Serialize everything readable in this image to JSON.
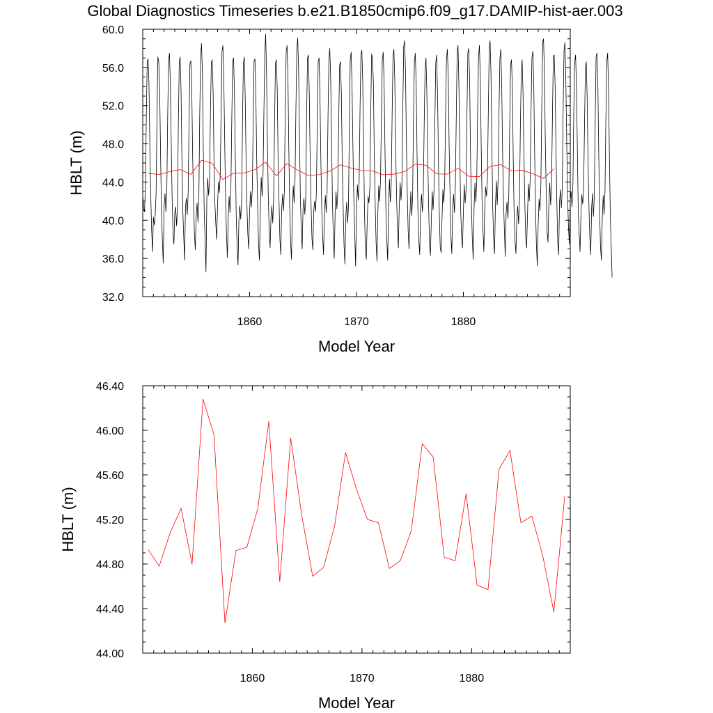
{
  "title": "Global Diagnostics Timeseries b.e21.B1850cmip6.f09_g17.DAMIP-hist-aer.003",
  "chart_data": [
    {
      "type": "line",
      "xlabel": "Model Year",
      "ylabel": "HBLT (m)",
      "xlim": [
        1850,
        1890
      ],
      "ylim": [
        32.0,
        60.0
      ],
      "x_ticks": [
        "1860",
        "1870",
        "1880"
      ],
      "y_ticks": [
        "32.0",
        "36.0",
        "40.0",
        "44.0",
        "48.0",
        "52.0",
        "56.0",
        "60.0"
      ],
      "series": [
        {
          "style": "monthly",
          "color": "#000000",
          "x_start": 1850.0,
          "x_step": 0.08333,
          "values": [
            42.7,
            41.3,
            40.9,
            43.6,
            50.6,
            56.6,
            56.9,
            54.3,
            47.6,
            42.6,
            38.9,
            36.7,
            40.3,
            39.5,
            40.5,
            42.8,
            50.9,
            57.1,
            56.6,
            53.8,
            47.1,
            41.0,
            38.0,
            35.5,
            41.5,
            42.8,
            40.9,
            43.0,
            50.8,
            56.7,
            57.5,
            54.4,
            48.0,
            42.3,
            38.6,
            37.5,
            40.8,
            41.4,
            39.4,
            41.4,
            50.2,
            56.5,
            57.1,
            53.7,
            46.3,
            41.0,
            38.3,
            35.8,
            41.4,
            42.3,
            40.6,
            42.8,
            50.4,
            56.4,
            56.7,
            54.1,
            47.0,
            42.2,
            38.7,
            36.9,
            40.4,
            41.8,
            39.8,
            42.2,
            51.1,
            57.0,
            58.5,
            55.4,
            47.5,
            41.0,
            37.9,
            34.6,
            42.5,
            44.4,
            42.6,
            44.0,
            51.0,
            56.5,
            56.8,
            53.6,
            46.3,
            41.8,
            39.7,
            38.0,
            41.5,
            44.0,
            42.9,
            44.7,
            51.4,
            57.7,
            58.3,
            54.9,
            48.4,
            42.3,
            38.7,
            36.1,
            40.3,
            42.5,
            40.8,
            43.5,
            50.7,
            56.7,
            57.0,
            53.2,
            46.4,
            40.3,
            37.1,
            35.3,
            40.1,
            41.5,
            40.1,
            41.9,
            50.0,
            56.4,
            57.1,
            53.2,
            46.6,
            41.5,
            38.5,
            37.0,
            41.0,
            43.0,
            41.4,
            43.2,
            50.1,
            56.7,
            56.9,
            53.2,
            46.1,
            41.6,
            37.5,
            35.8,
            40.9,
            44.5,
            42.5,
            44.4,
            51.1,
            57.2,
            59.5,
            55.4,
            48.0,
            42.4,
            38.8,
            37.1,
            40.2,
            41.5,
            39.7,
            42.4,
            50.1,
            56.4,
            56.8,
            53.9,
            46.1,
            42.0,
            38.0,
            36.4,
            41.1,
            42.7,
            41.0,
            43.1,
            51.5,
            57.6,
            58.3,
            55.2,
            47.6,
            41.4,
            37.7,
            35.9,
            40.7,
            43.6,
            41.8,
            44.3,
            51.8,
            57.8,
            59.1,
            55.7,
            48.8,
            42.3,
            39.0,
            37.0,
            41.2,
            42.3,
            40.6,
            42.4,
            51.0,
            57.0,
            57.3,
            53.3,
            46.4,
            41.6,
            38.1,
            36.9,
            41.0,
            42.0,
            40.9,
            43.0,
            50.6,
            56.6,
            57.0,
            53.0,
            46.3,
            41.1,
            38.3,
            36.4,
            40.4,
            42.6,
            40.8,
            43.0,
            50.7,
            56.8,
            58.0,
            54.9,
            48.3,
            42.0,
            38.2,
            36.0,
            40.7,
            43.0,
            41.2,
            43.1,
            50.0,
            56.2,
            56.6,
            53.4,
            46.0,
            41.5,
            37.4,
            35.4,
            40.3,
            41.9,
            39.7,
            41.4,
            49.9,
            56.9,
            57.6,
            54.1,
            47.6,
            42.2,
            38.8,
            35.2,
            40.8,
            43.7,
            42.1,
            44.1,
            51.8,
            57.4,
            57.8,
            54.6,
            47.6,
            40.8,
            37.0,
            35.9,
            39.7,
            42.5,
            41.8,
            43.4,
            51.3,
            57.4,
            57.0,
            54.4,
            46.7,
            41.7,
            37.7,
            35.7,
            40.9,
            43.6,
            42.0,
            44.4,
            50.7,
            56.9,
            57.6,
            54.4,
            47.3,
            41.2,
            38.0,
            35.8,
            41.1,
            44.3,
            41.9,
            43.8,
            50.9,
            57.2,
            57.9,
            54.6,
            47.5,
            42.5,
            39.0,
            37.1,
            41.5,
            43.9,
            42.1,
            43.9,
            51.6,
            58.2,
            58.8,
            55.8,
            48.4,
            42.9,
            38.9,
            37.0,
            40.6,
            43.0,
            40.5,
            42.3,
            50.7,
            56.6,
            57.5,
            54.4,
            46.9,
            40.9,
            37.9,
            36.4,
            41.2,
            42.7,
            40.9,
            42.9,
            50.0,
            55.9,
            57.0,
            53.4,
            46.8,
            41.4,
            37.5,
            36.3,
            39.9,
            43.0,
            41.1,
            43.1,
            50.3,
            56.5,
            57.3,
            53.3,
            46.2,
            40.6,
            37.2,
            36.6,
            40.1,
            43.2,
            41.8,
            43.8,
            50.8,
            56.8,
            57.9,
            55.2,
            47.9,
            42.9,
            38.4,
            36.5,
            41.1,
            42.7,
            40.8,
            43.6,
            50.5,
            57.6,
            58.3,
            54.1,
            46.9,
            41.0,
            38.3,
            37.1,
            40.9,
            43.7,
            41.8,
            43.1,
            50.8,
            57.5,
            58.0,
            55.1,
            47.1,
            41.7,
            38.2,
            35.9,
            41.2,
            43.9,
            41.9,
            44.0,
            51.3,
            57.1,
            58.3,
            55.1,
            47.9,
            42.0,
            39.0,
            36.7,
            41.3,
            43.5,
            42.5,
            44.3,
            51.2,
            58.0,
            58.8,
            55.4,
            47.9,
            41.3,
            38.0,
            36.5,
            41.6,
            44.1,
            41.6,
            44.3,
            51.2,
            56.9,
            57.9,
            54.6,
            47.4,
            42.1,
            39.2,
            36.2,
            40.8,
            41.9,
            40.2,
            42.6,
            49.6,
            56.3,
            56.8,
            54.0,
            46.5,
            40.7,
            37.9,
            36.5,
            40.1,
            41.5,
            39.6,
            42.1,
            49.7,
            55.4,
            56.8,
            53.3,
            47.0,
            41.8,
            38.3,
            37.1,
            40.5,
            43.8,
            42.0,
            44.3,
            51.6,
            57.0,
            57.7,
            54.6,
            47.3,
            41.3,
            37.4,
            35.2,
            39.6,
            42.2,
            41.0,
            43.6,
            51.6,
            58.6,
            59.0,
            55.6,
            48.4,
            43.1,
            38.8,
            37.7,
            41.7,
            43.9,
            41.6,
            43.6,
            50.8,
            57.2,
            57.3,
            54.1,
            47.5,
            41.6,
            37.6,
            36.4,
            42.0,
            43.2,
            41.3,
            43.1,
            51.3,
            57.7,
            58.6,
            55.1,
            48.5,
            42.6,
            39.3,
            37.5,
            42.1,
            43.0,
            41.4,
            43.8,
            51.4,
            56.6,
            57.3,
            54.0,
            47.4,
            40.9,
            38.6,
            36.7,
            40.5,
            42.7,
            41.7,
            43.0,
            49.9,
            55.8,
            56.6,
            52.8,
            45.9,
            41.4,
            38.1,
            36.4,
            41.3,
            42.8,
            40.4,
            42.4,
            50.3,
            57.1,
            57.5,
            54.2,
            47.0,
            40.8,
            37.1,
            35.8,
            40.2,
            42.6,
            40.6,
            43.0,
            50.5,
            56.6,
            57.5,
            53.7,
            46.6,
            40.4,
            37.2,
            34.0
          ]
        },
        {
          "style": "annual",
          "color": "#ff0000",
          "x_start": 1850.5,
          "x_step": 1,
          "values": [
            44.93,
            44.78,
            45.08,
            45.3,
            44.8,
            46.28,
            45.96,
            44.27,
            44.92,
            44.95,
            45.3,
            46.08,
            44.64,
            45.93,
            45.24,
            44.69,
            44.77,
            45.14,
            45.8,
            45.47,
            45.2,
            45.17,
            44.76,
            44.83,
            45.1,
            45.88,
            45.76,
            44.86,
            44.83,
            45.43,
            44.61,
            44.57,
            45.65,
            45.82,
            45.17,
            45.23,
            44.87,
            44.37,
            45.41
          ]
        }
      ]
    },
    {
      "type": "line",
      "xlabel": "Model Year",
      "ylabel": "HBLT (m)",
      "xlim": [
        1850,
        1889
      ],
      "ylim": [
        44.0,
        46.4
      ],
      "x_ticks": [
        "1860",
        "1870",
        "1880"
      ],
      "y_ticks": [
        "44.00",
        "44.40",
        "44.80",
        "45.20",
        "45.60",
        "46.00",
        "46.40"
      ],
      "series": [
        {
          "style": "annual",
          "color": "#ff0000",
          "x_start": 1850.5,
          "x_step": 1,
          "values": [
            44.93,
            44.78,
            45.08,
            45.3,
            44.8,
            46.28,
            45.96,
            44.27,
            44.92,
            44.95,
            45.3,
            46.08,
            44.64,
            45.93,
            45.24,
            44.69,
            44.77,
            45.14,
            45.8,
            45.47,
            45.2,
            45.17,
            44.76,
            44.83,
            45.1,
            45.88,
            45.76,
            44.86,
            44.83,
            45.43,
            44.61,
            44.57,
            45.65,
            45.82,
            45.17,
            45.23,
            44.87,
            44.37,
            45.41
          ]
        }
      ]
    }
  ]
}
